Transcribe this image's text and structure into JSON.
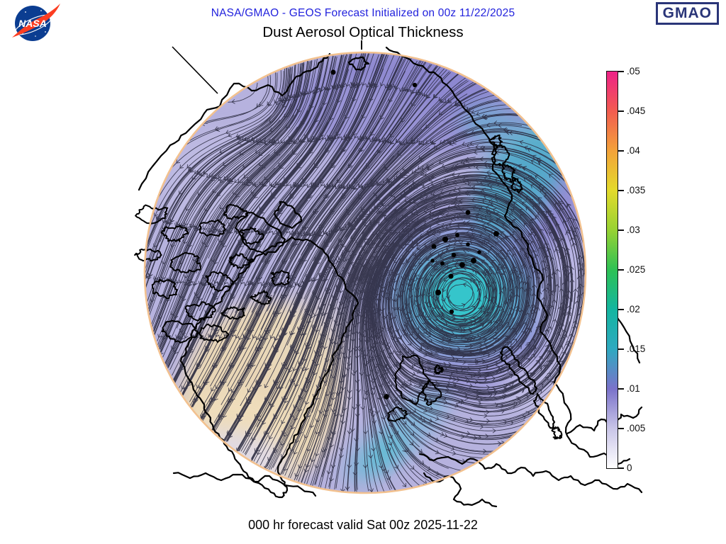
{
  "header": {
    "forecast_line": "NASA/GMAO - GEOS Forecast Initialized on 00z 11/22/2025",
    "forecast_color": "#2222dd",
    "title": "Dust Aerosol Optical Thickness"
  },
  "logos": {
    "nasa": "NASA",
    "nasa_circle_color": "#0b3d91",
    "nasa_swoosh_color": "#fc3d21",
    "gmao": "GMAO",
    "gmao_color": "#2a3578"
  },
  "footer": {
    "caption": "000 hr forecast valid Sat 00z 2025-11-22"
  },
  "colorbar": {
    "title": "",
    "range": [
      0,
      0.05
    ],
    "ticks": [
      "0",
      ".005",
      ".01",
      ".015",
      ".02",
      ".025",
      ".03",
      ".035",
      ".04",
      ".045",
      ".05"
    ],
    "stops": [
      {
        "v": 0.0,
        "color": "#ffffff"
      },
      {
        "v": 0.005,
        "color": "#c9c5e8"
      },
      {
        "v": 0.01,
        "color": "#7a72ca"
      },
      {
        "v": 0.015,
        "color": "#2fa9c0"
      },
      {
        "v": 0.02,
        "color": "#14b5a0"
      },
      {
        "v": 0.025,
        "color": "#2ec155"
      },
      {
        "v": 0.03,
        "color": "#97d233"
      },
      {
        "v": 0.035,
        "color": "#e3da2c"
      },
      {
        "v": 0.04,
        "color": "#f3a23a"
      },
      {
        "v": 0.045,
        "color": "#f25c50"
      },
      {
        "v": 0.05,
        "color": "#ee2288"
      }
    ]
  },
  "map": {
    "base_color": "#b6b2de",
    "rim_color": "#f2c18f",
    "streamline_color": "#2b2b40",
    "coastline_color": "#000000"
  }
}
